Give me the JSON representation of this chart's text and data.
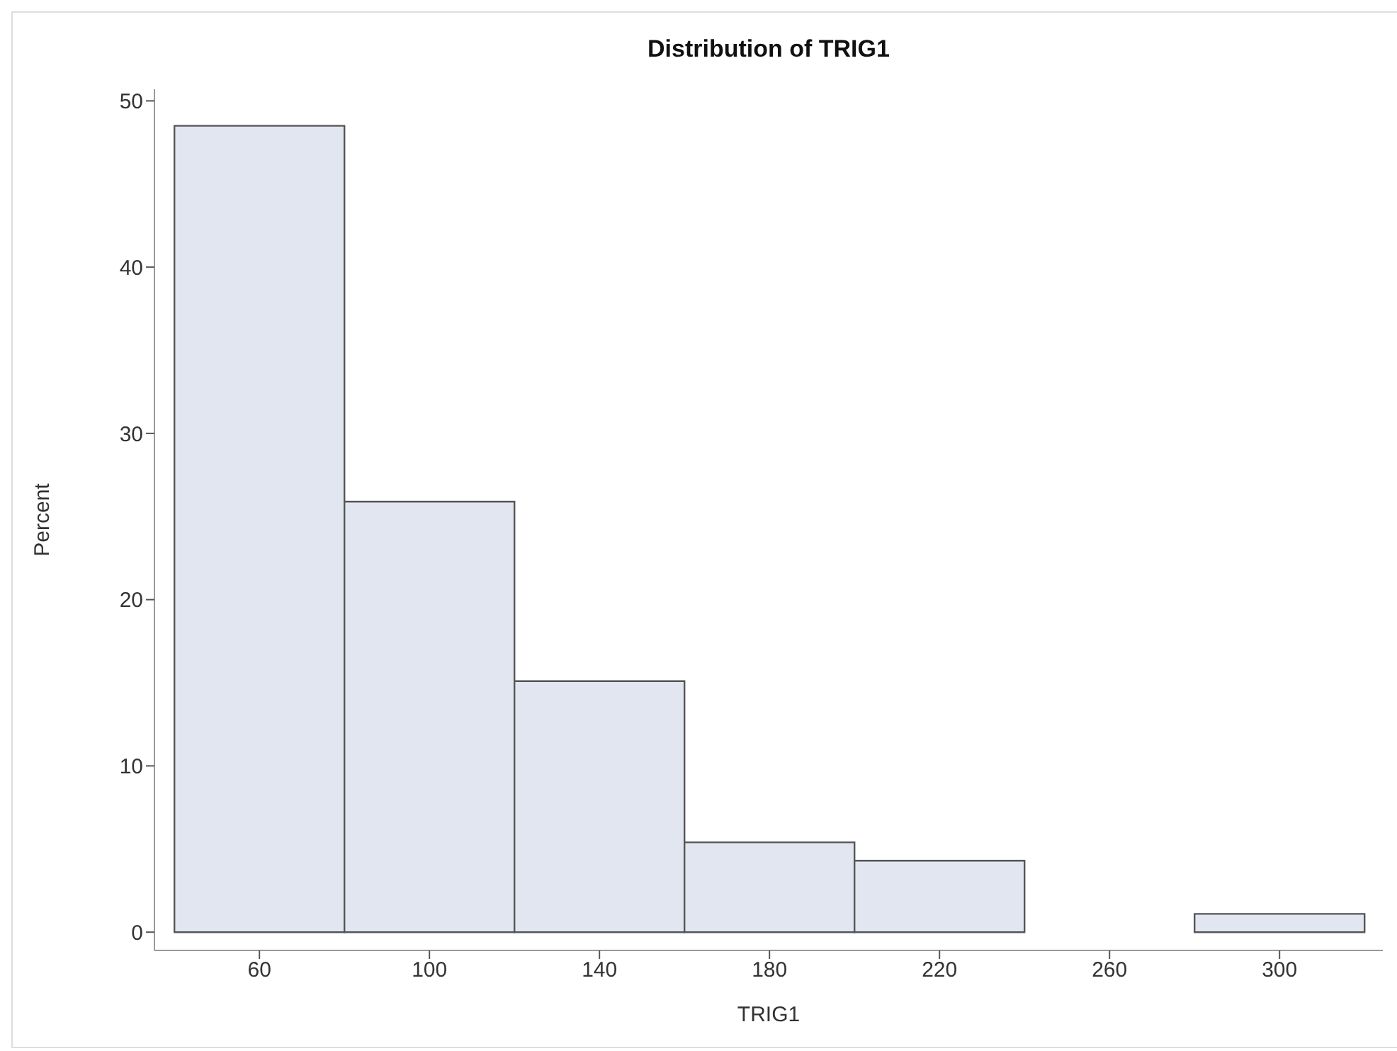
{
  "chart_data": {
    "type": "histogram",
    "title": "Distribution of TRIG1",
    "xlabel": "TRIG1",
    "ylabel": "Percent",
    "bins": [
      40,
      80,
      120,
      160,
      200,
      240,
      280,
      320
    ],
    "values": [
      48.5,
      25.9,
      15.1,
      5.4,
      4.3,
      0,
      1.1
    ],
    "color": "#e1e6f0",
    "xlim": [
      35.3,
      324.3
    ],
    "xticks": [
      60,
      100,
      140,
      180,
      220,
      260,
      300
    ],
    "ylim": [
      -1.1,
      50.7
    ],
    "yticks": [
      0,
      10,
      20,
      30,
      40,
      50
    ],
    "grid": false,
    "legend": false
  }
}
